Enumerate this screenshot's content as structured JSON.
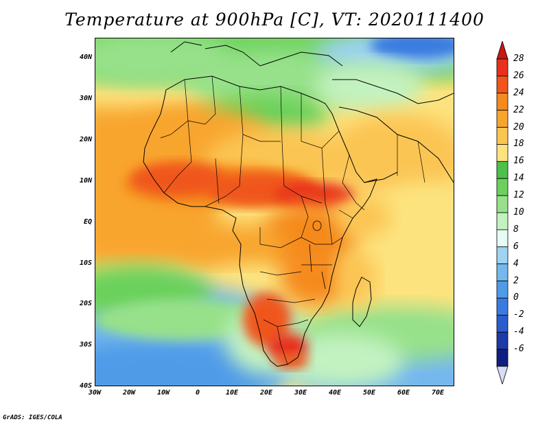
{
  "title": "Temperature at 900hPa [C], VT: 2020111400",
  "credit": "GrADS: IGES/COLA",
  "map": {
    "lon_range": [
      -30,
      75
    ],
    "lat_range": [
      -40,
      45
    ],
    "lat_labels": [
      "40N",
      "30N",
      "20N",
      "10N",
      "EQ",
      "10S",
      "20S",
      "30S",
      "40S"
    ],
    "lat_values": [
      40,
      30,
      20,
      10,
      0,
      -10,
      -20,
      -30,
      -40
    ],
    "lon_labels": [
      "30W",
      "20W",
      "10W",
      "0",
      "10E",
      "20E",
      "30E",
      "40E",
      "50E",
      "60E",
      "70E"
    ],
    "lon_values": [
      -30,
      -20,
      -10,
      0,
      10,
      20,
      30,
      40,
      50,
      60,
      70
    ]
  },
  "colorbar": {
    "unit": "C",
    "levels": [
      "28",
      "26",
      "24",
      "22",
      "20",
      "18",
      "16",
      "14",
      "12",
      "10",
      "8",
      "6",
      "4",
      "2",
      "0",
      "-2",
      "-4",
      "-6"
    ],
    "colors": [
      "#e8301c",
      "#f0561c",
      "#f58a1e",
      "#f8a52e",
      "#fbc552",
      "#fde37e",
      "#4dc14a",
      "#6bd15c",
      "#97e18a",
      "#c2f2c0",
      "#e6fbf4",
      "#9ed3f2",
      "#74b8ee",
      "#4f9be8",
      "#3a7be0",
      "#2a5ccd",
      "#1d3ba8",
      "#0e1f80"
    ],
    "top_color": "#c81812",
    "bottom_color": "#d8dcf5"
  }
}
